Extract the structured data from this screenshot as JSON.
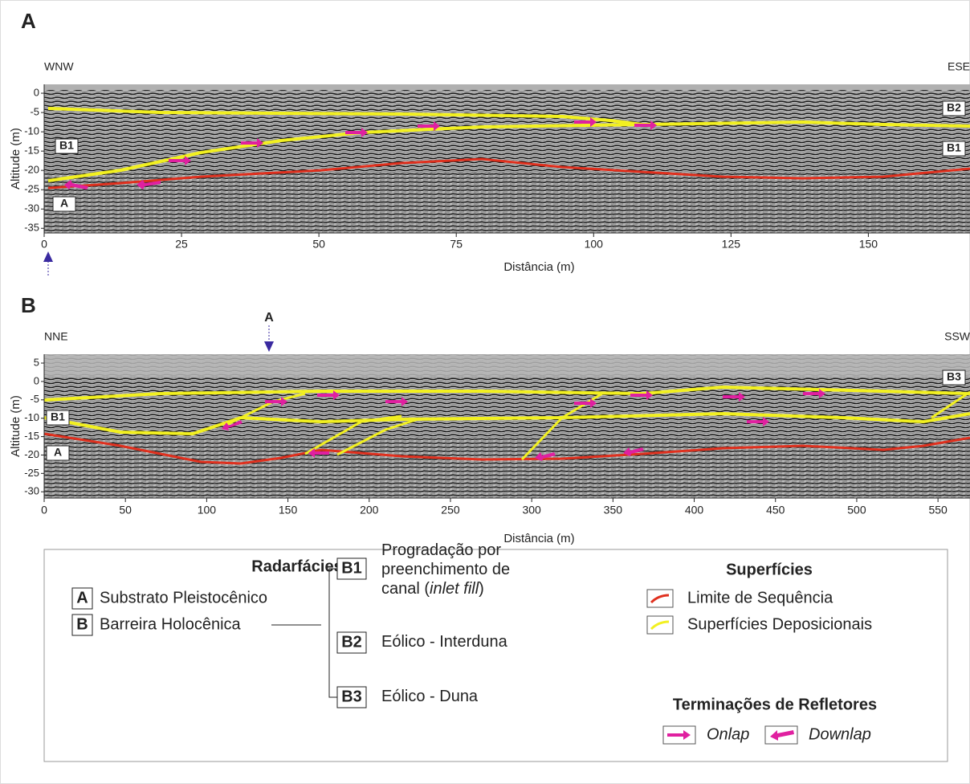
{
  "panels": [
    {
      "label": "A",
      "left": "WNW",
      "right": "ESE",
      "y_axis_label": "Altitude (m)",
      "x_axis_label": "Distância (m)",
      "xlim": [
        0,
        168.5
      ],
      "ylim": [
        -36.2,
        2.3
      ],
      "xticks": [
        0,
        25,
        50,
        75,
        100,
        125,
        150
      ],
      "yticks": [
        0,
        -5,
        -10,
        -15,
        -20,
        -25,
        -30,
        -35
      ],
      "facies_labels": [
        "B2",
        "B1",
        "B1",
        "A"
      ]
    },
    {
      "label": "B",
      "left": "NNE",
      "right": "SSW",
      "marker": "A",
      "y_axis_label": "Altitude (m)",
      "x_axis_label": "Distância (m)",
      "xlim": [
        0,
        569.7
      ],
      "ylim": [
        -31.7,
        7.4
      ],
      "xticks": [
        0,
        50,
        100,
        150,
        200,
        250,
        300,
        350,
        400,
        450,
        500,
        550
      ],
      "yticks": [
        5,
        0,
        -5,
        -10,
        -15,
        -20,
        -25,
        -30
      ],
      "facies_labels": [
        "B3",
        "B1",
        "A"
      ]
    }
  ],
  "legend": {
    "radarfacies_title": "Radarfácies",
    "units": [
      {
        "code": "A",
        "label": "Substrato Pleistocênico"
      },
      {
        "code": "B",
        "label": "Barreira Holocênica"
      }
    ],
    "subunits": [
      {
        "code": "B1",
        "lines": [
          "Progradação por",
          "preenchimento de",
          "canal ("
        ],
        "italic": "inlet fill",
        "after": ")"
      },
      {
        "code": "B2",
        "lines": [
          "Eólico - Interduna"
        ]
      },
      {
        "code": "B3",
        "lines": [
          "Eólico - Duna"
        ]
      }
    ],
    "surfaces_title": "Superfícies",
    "surfaces": [
      {
        "label": "Limite de Sequência",
        "color": "#e0301e"
      },
      {
        "label": "Superfícies Deposicionais",
        "color": "#f2f020"
      }
    ],
    "terminations_title": "Terminações de Refletores",
    "terminations": [
      {
        "label": "Onlap",
        "color": "#e020a0"
      },
      {
        "label": "Downlap",
        "color": "#e020a0"
      }
    ]
  }
}
